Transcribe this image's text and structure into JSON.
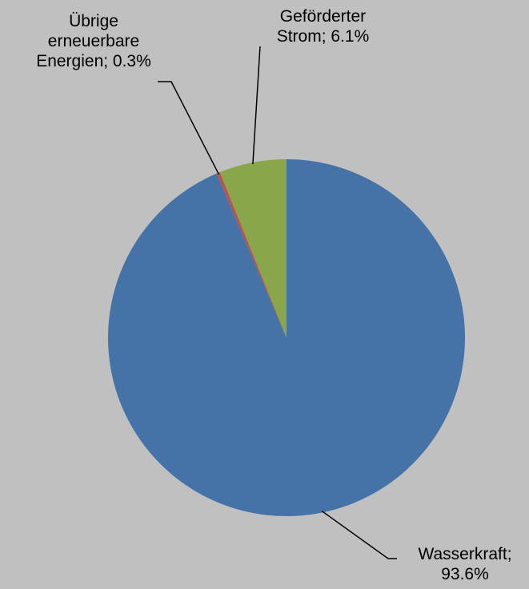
{
  "chart_data": {
    "type": "pie",
    "slices": [
      {
        "name": "Wasserkraft",
        "value": 93.6,
        "label_lines": [
          "Wasserkraft;",
          "93.6%"
        ],
        "color": "#4573a7"
      },
      {
        "name": "Übrige erneuerbare Energien",
        "value": 0.3,
        "label_lines": [
          "Übrige",
          "erneuerbare",
          "Energien; 0.3%"
        ],
        "color": "#c0504d"
      },
      {
        "name": "Geförderter Strom",
        "value": 6.1,
        "label_lines": [
          "Geförderter",
          "Strom; 6.1%"
        ],
        "color": "#8aa64b"
      }
    ],
    "start_angle": "12 o'clock",
    "direction": "clockwise",
    "legend": "none",
    "background_color": "#c0c0c0",
    "leader_line_color": "#000000"
  }
}
